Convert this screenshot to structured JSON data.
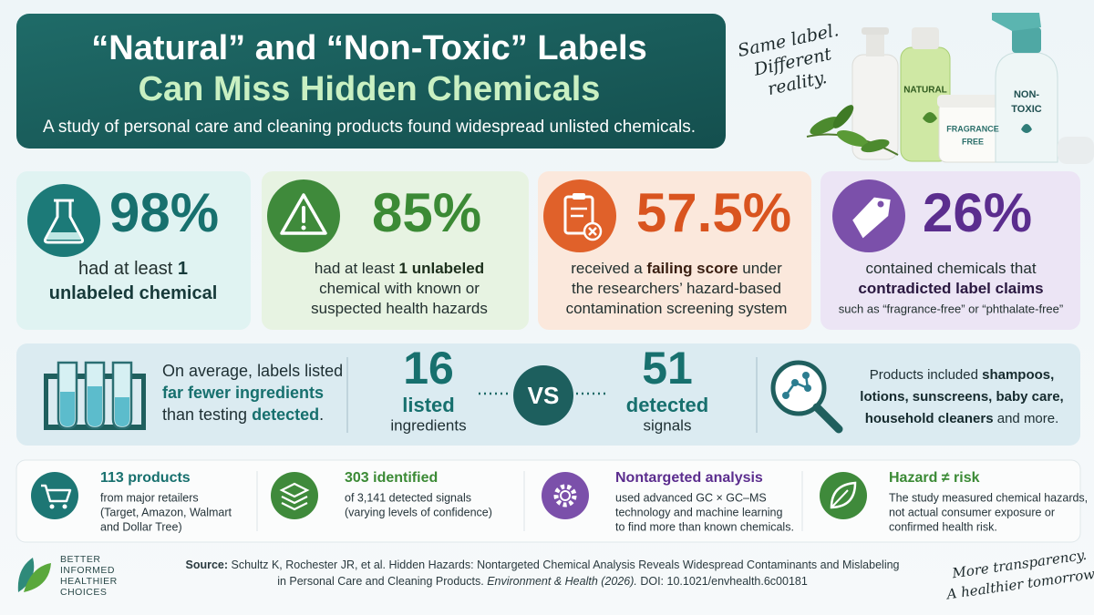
{
  "header": {
    "title_line1": "“Natural” and “Non-Toxic” Labels",
    "title_line2": "Can Miss Hidden Chemicals",
    "subtitle": "A study of personal care and cleaning products found widespread unlisted chemicals."
  },
  "note": [
    "Same label.",
    "Different",
    "reality."
  ],
  "products": {
    "natural": "NATURAL",
    "fragrance_free": [
      "FRAGRANCE",
      "FREE"
    ],
    "non_toxic": [
      "NON-",
      "TOXIC"
    ]
  },
  "cards": [
    {
      "stat": "98%",
      "lines": [
        [
          "had at least ",
          {
            "b": "1"
          }
        ],
        [
          {
            "b": "unlabeled chemical"
          }
        ]
      ]
    },
    {
      "stat": "85%",
      "lines": [
        [
          "had at least ",
          {
            "b": "1 unlabeled"
          }
        ],
        [
          "chemical with known or"
        ],
        [
          "suspected health hazards"
        ]
      ]
    },
    {
      "stat": "57.5%",
      "lines": [
        [
          "received a ",
          {
            "b": "failing score"
          },
          " under"
        ],
        [
          "the researchers’ hazard-based"
        ],
        [
          "contamination screening system"
        ]
      ]
    },
    {
      "stat": "26%",
      "lines": [
        [
          "contained chemicals that"
        ],
        [
          {
            "b": "contradicted label claims"
          }
        ]
      ],
      "note": "such as “fragrance-free” or “phthalate-free”"
    }
  ],
  "comparison": {
    "left_text": [
      [
        "On average, labels listed"
      ],
      [
        {
          "b": "far fewer ingredients"
        }
      ],
      [
        "than testing ",
        {
          "b": "detected"
        },
        "."
      ]
    ],
    "listed": {
      "number": "16",
      "label1": "listed",
      "label2": "ingredients"
    },
    "vs": "VS",
    "detected": {
      "number": "51",
      "label1": "detected",
      "label2": "signals"
    },
    "right_text": [
      [
        "Products included ",
        {
          "b": "shampoos,"
        }
      ],
      [
        {
          "b": "lotions, sunscreens, baby care,"
        }
      ],
      [
        {
          "b": "household cleaners"
        },
        " and more."
      ]
    ]
  },
  "facts": [
    {
      "title": "113 products",
      "lines": [
        "from major retailers",
        "(Target, Amazon, Walmart",
        "and Dollar Tree)"
      ]
    },
    {
      "title": "303 identified",
      "lines": [
        "of 3,141 detected signals",
        "(varying levels of confidence)"
      ]
    },
    {
      "title": "Nontargeted analysis",
      "lines": [
        "used advanced GC × GC–MS",
        "technology and machine learning",
        "to find more than known chemicals."
      ]
    },
    {
      "title": "Hazard ≠ risk",
      "lines": [
        "The study measured chemical hazards,",
        "not actual consumer exposure or",
        "confirmed health risk."
      ]
    }
  ],
  "footer": {
    "logo": [
      "BETTER",
      "INFORMED",
      "HEALTHIER",
      "CHOICES"
    ],
    "source": [
      [
        {
          "b": "Source:"
        },
        " Schultz K, Rochester JR, et al. Hidden Hazards: Nontargeted Chemical Analysis Reveals Widespread Contaminants and Mislabeling"
      ],
      [
        "in Personal Care and Cleaning Products. ",
        {
          "i": "Environment & Health (2026)."
        },
        "  DOI: 10.1021/envhealth.6c00181"
      ]
    ],
    "tagline": [
      "More transparency.",
      "A healthier tomorrow."
    ]
  }
}
